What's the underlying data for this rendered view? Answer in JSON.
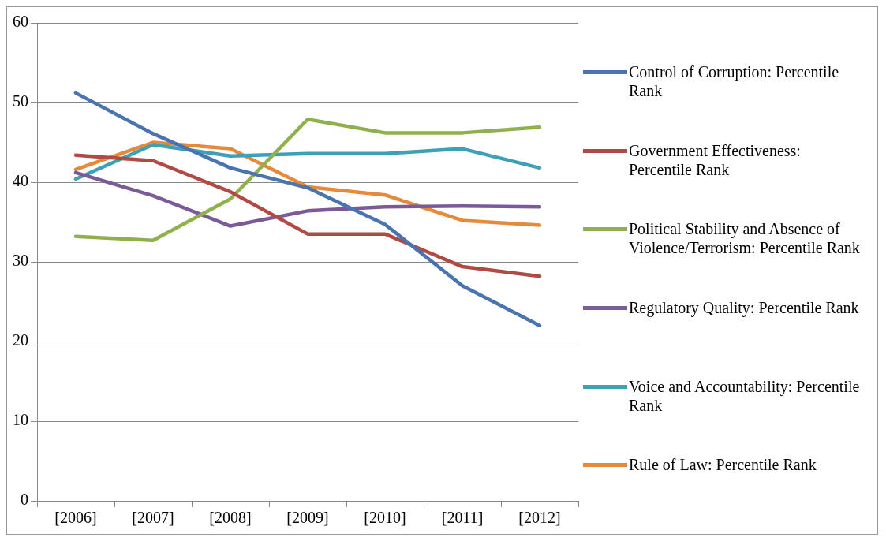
{
  "chart_data": {
    "type": "line",
    "categories": [
      "[2006]",
      "[2007]",
      "[2008]",
      "[2009]",
      "[2010]",
      "[2011]",
      "[2012]"
    ],
    "series": [
      {
        "name": "Control of Corruption: Percentile Rank",
        "color": "#4a74b0",
        "values": [
          51.2,
          46.1,
          41.8,
          39.3,
          34.7,
          27.0,
          22.0
        ]
      },
      {
        "name": "Government Effectiveness: Percentile Rank",
        "color": "#b24a44",
        "values": [
          43.4,
          42.7,
          38.8,
          33.5,
          33.5,
          29.4,
          28.2
        ]
      },
      {
        "name": "Political Stability and Absence of Violence/Terrorism: Percentile Rank",
        "color": "#8fb04c",
        "values": [
          33.2,
          32.7,
          37.9,
          47.9,
          46.2,
          46.2,
          46.9
        ]
      },
      {
        "name": "Regulatory Quality: Percentile Rank",
        "color": "#7a5a98",
        "values": [
          41.2,
          38.3,
          34.5,
          36.4,
          36.9,
          37.0,
          36.9
        ]
      },
      {
        "name": "Voice and Accountability: Percentile Rank",
        "color": "#3ea0b8",
        "values": [
          40.4,
          44.7,
          43.3,
          43.6,
          43.6,
          44.2,
          41.8
        ]
      },
      {
        "name": "Rule of Law: Percentile Rank",
        "color": "#e5893a",
        "values": [
          41.6,
          45.0,
          44.2,
          39.4,
          38.4,
          35.2,
          34.6
        ]
      }
    ],
    "ylim": [
      0,
      60
    ],
    "yticks": [
      0,
      10,
      20,
      30,
      40,
      50,
      60
    ],
    "grid": "y",
    "legend": "right",
    "marker": "none",
    "line_style": "solid"
  }
}
